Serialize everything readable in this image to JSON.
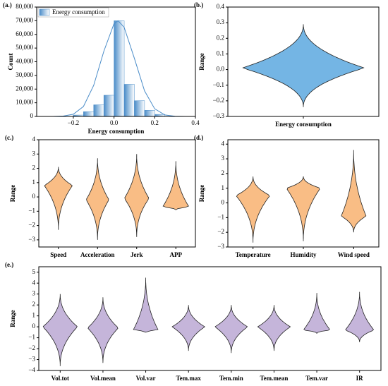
{
  "chart_data": [
    {
      "type": "histogram",
      "panel": "(a.)",
      "name": "Energy consumption",
      "color": "#4a8cc8",
      "xlabel": "Energy consumption",
      "ylabel": "Count",
      "bins": [
        -0.2,
        -0.15,
        -0.1,
        -0.05,
        0,
        0.05,
        0.1,
        0.15,
        0.2,
        0.25
      ],
      "counts": [
        1000,
        3500,
        8500,
        15500,
        70000,
        23500,
        11500,
        4500,
        1500
      ],
      "fit_x": [
        -0.35,
        -0.3,
        -0.25,
        -0.2,
        -0.15,
        -0.1,
        -0.05,
        0,
        0.02,
        0.05,
        0.1,
        0.15,
        0.2,
        0.25,
        0.3,
        0.35
      ],
      "fit_values": [
        0,
        10,
        235,
        1600,
        7300,
        22700,
        47700,
        67800,
        70000,
        65200,
        42500,
        18700,
        5600,
        1100,
        150,
        10
      ],
      "xlim": [
        -0.38,
        0.4
      ],
      "xticks": [
        {
          "value": -0.2,
          "label": "−0.2"
        },
        {
          "value": 0,
          "label": "0.0"
        },
        0.2,
        0.4
      ],
      "ylim": [
        0,
        80000
      ],
      "yticks": [
        0,
        {
          "value": 10000,
          "label": "10,000"
        },
        {
          "value": 20000,
          "label": "20,000"
        },
        {
          "value": 30000,
          "label": "30,000"
        },
        {
          "value": 40000,
          "label": "40,000"
        },
        {
          "value": 50000,
          "label": "50,000"
        },
        {
          "value": 60000,
          "label": "60,000"
        },
        {
          "value": 70000,
          "label": "70,000"
        },
        {
          "value": 80000,
          "label": "80,000"
        }
      ]
    },
    {
      "type": "violin",
      "panel": "(b.)",
      "ylabel": "Range",
      "color": "#74b5e4",
      "categories": [
        "Energy consumption"
      ],
      "violins": [
        {
          "min": -0.24,
          "max": 0.29,
          "peak": 0.01,
          "width": 0.9
        }
      ],
      "ylim": [
        -0.3,
        0.4
      ],
      "yticks": [
        {
          "value": -0.3,
          "label": "−0.3"
        },
        {
          "value": -0.2,
          "label": "−0.2"
        },
        {
          "value": -0.1,
          "label": "−0.1"
        },
        {
          "value": 0,
          "label": "0.0"
        },
        0.1,
        0.2,
        0.3,
        0.4
      ]
    },
    {
      "type": "violin",
      "panel": "(c.)",
      "ylabel": "Range",
      "color": "#f9bd85",
      "categories": [
        "Speed",
        "Acceleration",
        "Jerk",
        "APP"
      ],
      "violins": [
        {
          "min": -2.3,
          "max": 2.1,
          "peak": 0.8,
          "width": 0.8
        },
        {
          "min": -3,
          "max": 2.7,
          "peak": -0.2,
          "width": 0.65
        },
        {
          "min": -2.8,
          "max": 3,
          "peak": -0.1,
          "width": 0.7
        },
        {
          "min": -0.9,
          "max": 2.5,
          "peak": -0.7,
          "width": 0.75
        }
      ],
      "ylim": [
        -3.5,
        4
      ],
      "yticks": [
        {
          "value": -3,
          "label": "−3"
        },
        {
          "value": -2,
          "label": "−2"
        },
        {
          "value": -1,
          "label": "−1"
        },
        0,
        1,
        2,
        3,
        4
      ]
    },
    {
      "type": "violin",
      "panel": "(d.)",
      "ylabel": "Range",
      "color": "#f9bd85",
      "categories": [
        "Temperature",
        "Humidity",
        "Wind speed"
      ],
      "violins": [
        {
          "min": -2.7,
          "max": 1.8,
          "peak": 0.5,
          "width": 0.75
        },
        {
          "min": -2.6,
          "max": 1.8,
          "peak": 1,
          "width": 0.75
        },
        {
          "min": -2,
          "max": 3.6,
          "peak": -0.9,
          "width": 0.55
        }
      ],
      "ylim": [
        -3,
        4.3
      ],
      "yticks": [
        {
          "value": -3,
          "label": "−3"
        },
        {
          "value": -2,
          "label": "−2"
        },
        {
          "value": -1,
          "label": "−1"
        },
        0,
        1,
        2,
        3,
        4
      ]
    },
    {
      "type": "violin",
      "panel": "(e.)",
      "ylabel": "Range",
      "color": "#c5b5da",
      "categories": [
        "Vol.tot",
        "Vol.mean",
        "Vol.var",
        "Tem.max",
        "Tem.min",
        "Tem.mean",
        "Tem.var",
        "IR"
      ],
      "violins": [
        {
          "min": -3.6,
          "max": 3,
          "peak": 0,
          "width": 0.9
        },
        {
          "min": -3.3,
          "max": 2.7,
          "peak": -0.1,
          "width": 0.8
        },
        {
          "min": -0.5,
          "max": 4.5,
          "peak": -0.3,
          "width": 0.65
        },
        {
          "min": -2.2,
          "max": 2,
          "peak": 0,
          "width": 0.85
        },
        {
          "min": -2.4,
          "max": 2,
          "peak": 0,
          "width": 0.85
        },
        {
          "min": -2.2,
          "max": 2,
          "peak": 0,
          "width": 0.85
        },
        {
          "min": -0.6,
          "max": 3.1,
          "peak": -0.3,
          "width": 0.7
        },
        {
          "min": -1.4,
          "max": 3.2,
          "peak": -0.3,
          "width": 0.75
        }
      ],
      "ylim": [
        -4,
        5.5
      ],
      "yticks": [
        {
          "value": -4,
          "label": "−4"
        },
        {
          "value": -3,
          "label": "−3"
        },
        {
          "value": -2,
          "label": "−2"
        },
        {
          "value": -1,
          "label": "−1"
        },
        0,
        1,
        2,
        3,
        4,
        5
      ]
    }
  ]
}
